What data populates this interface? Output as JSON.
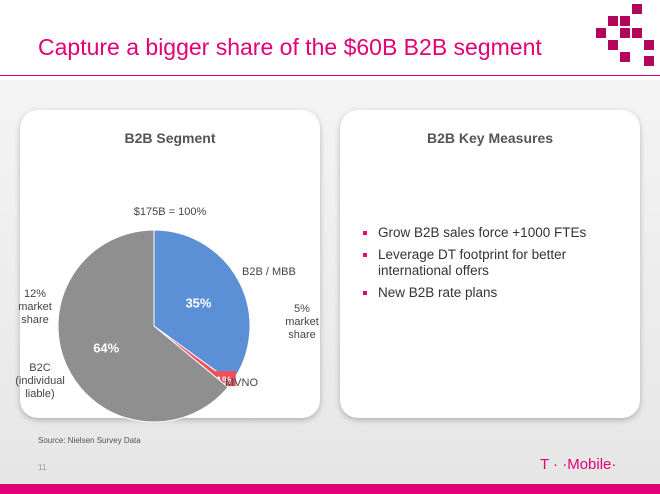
{
  "slide": {
    "title": "Capture a bigger share of the $60B B2B segment",
    "source": "Source: Nielsen Survey Data",
    "page_number": "11",
    "logo_text": "T · ·Mobile·",
    "brand_color": "#e20074"
  },
  "left_panel": {
    "title": "B2B Segment",
    "total_label": "$175B = 100%"
  },
  "right_panel": {
    "title": "B2B Key Measures",
    "bullets": [
      "Grow B2B sales force +1000 FTEs",
      "Leverage DT footprint for better international offers",
      "New B2B rate plans"
    ]
  },
  "chart_data": {
    "type": "pie",
    "title": "B2B Segment",
    "total": "$175B = 100%",
    "slices": [
      {
        "name": "B2B / MBB",
        "value": 35,
        "label": "35%",
        "market_share": "5% market share",
        "color": "#5b8fd6"
      },
      {
        "name": "MVNO",
        "value": 1,
        "label": "1%",
        "color": "#f0505a"
      },
      {
        "name": "B2C (individual liable)",
        "value": 64,
        "label": "64%",
        "market_share": "12% market share",
        "color": "#8f8f8f"
      }
    ]
  }
}
